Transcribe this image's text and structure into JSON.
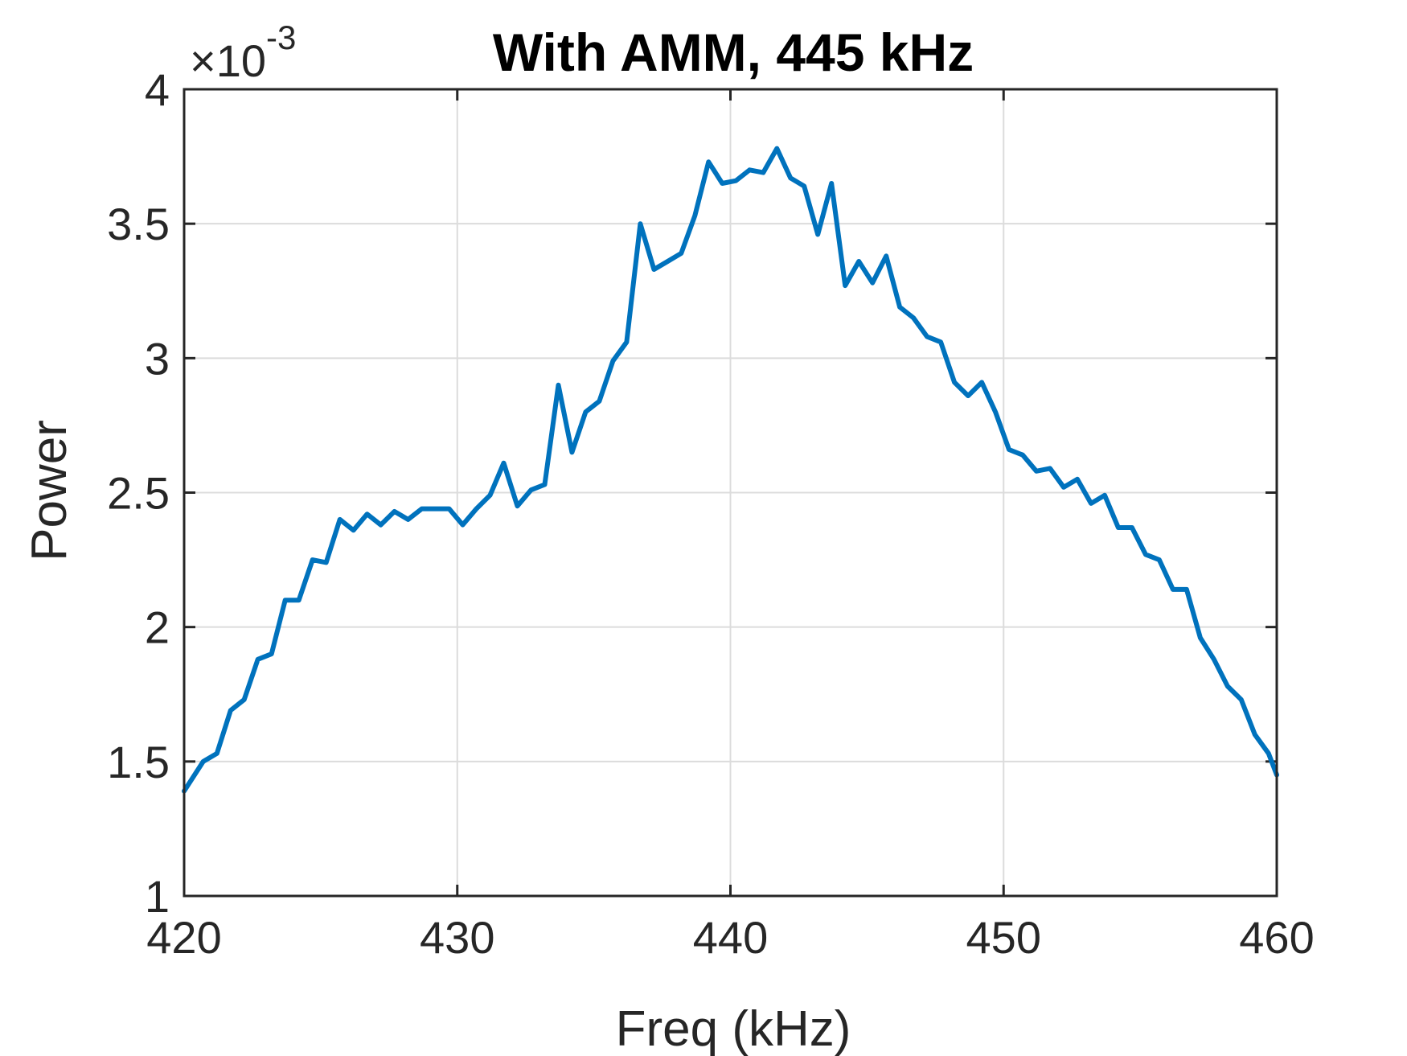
{
  "chart_data": {
    "type": "line",
    "title": "With AMM, 445 kHz",
    "xlabel": "Freq (kHz)",
    "ylabel": "Power",
    "y_multiplier": {
      "base": "×10",
      "exponent": "-3"
    },
    "xlim": [
      420,
      460
    ],
    "ylim": [
      1,
      4
    ],
    "xticks": [
      420,
      430,
      440,
      450,
      460
    ],
    "yticks": [
      1,
      1.5,
      2,
      2.5,
      3,
      3.5,
      4
    ],
    "grid": true,
    "line_color": "#0072BD",
    "series": [
      {
        "x": [
          420.0,
          420.7,
          421.2,
          421.7,
          422.2,
          422.7,
          423.2,
          423.7,
          424.2,
          424.7,
          425.2,
          425.7,
          426.2,
          426.7,
          427.2,
          427.7,
          428.2,
          428.7,
          429.2,
          429.7,
          430.2,
          430.7,
          431.2,
          431.7,
          432.2,
          432.7,
          433.2,
          433.7,
          434.2,
          434.7,
          435.2,
          435.7,
          436.2,
          436.7,
          437.2,
          437.7,
          438.2,
          438.7,
          439.2,
          439.7,
          440.2,
          440.7,
          441.2,
          441.7,
          442.2,
          442.7,
          443.2,
          443.7,
          444.2,
          444.7,
          445.2,
          445.7,
          446.2,
          446.7,
          447.2,
          447.7,
          448.2,
          448.7,
          449.2,
          449.7,
          450.2,
          450.7,
          451.2,
          451.7,
          452.2,
          452.7,
          453.2,
          453.7,
          454.2,
          454.7,
          455.2,
          455.7,
          456.2,
          456.7,
          457.2,
          457.7,
          458.2,
          458.7,
          459.2,
          459.7,
          460.0
        ],
        "values": [
          1.39,
          1.5,
          1.53,
          1.69,
          1.73,
          1.88,
          1.9,
          2.1,
          2.1,
          2.25,
          2.24,
          2.4,
          2.36,
          2.42,
          2.38,
          2.43,
          2.4,
          2.44,
          2.44,
          2.44,
          2.38,
          2.44,
          2.49,
          2.61,
          2.45,
          2.51,
          2.53,
          2.9,
          2.65,
          2.8,
          2.84,
          2.99,
          3.06,
          3.5,
          3.33,
          3.36,
          3.39,
          3.53,
          3.73,
          3.65,
          3.66,
          3.7,
          3.69,
          3.78,
          3.67,
          3.64,
          3.46,
          3.65,
          3.27,
          3.36,
          3.28,
          3.38,
          3.19,
          3.15,
          3.08,
          3.06,
          2.91,
          2.86,
          2.91,
          2.8,
          2.66,
          2.64,
          2.58,
          2.59,
          2.52,
          2.55,
          2.46,
          2.49,
          2.37,
          2.37,
          2.27,
          2.25,
          2.14,
          2.14,
          1.96,
          1.88,
          1.78,
          1.73,
          1.6,
          1.53,
          1.45
        ]
      }
    ]
  }
}
